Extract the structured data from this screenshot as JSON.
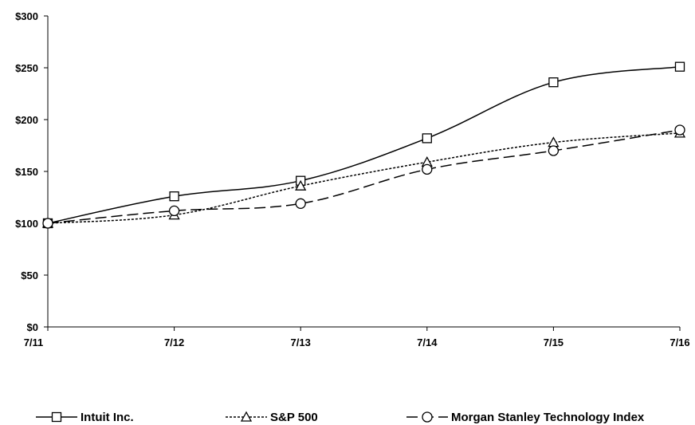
{
  "chart_data": {
    "type": "line",
    "categories": [
      "7/11",
      "7/12",
      "7/13",
      "7/14",
      "7/15",
      "7/16"
    ],
    "series": [
      {
        "name": "Intuit Inc.",
        "values": [
          100,
          126,
          141,
          182,
          236,
          251
        ],
        "marker": "square",
        "dash": "solid"
      },
      {
        "name": "S&P 500",
        "values": [
          100,
          108,
          136,
          159,
          178,
          187
        ],
        "marker": "triangle",
        "dash": "dotted"
      },
      {
        "name": "Morgan Stanley Technology Index",
        "values": [
          100,
          112,
          119,
          152,
          170,
          190
        ],
        "marker": "circle",
        "dash": "dashed"
      }
    ],
    "y_ticks": [
      0,
      50,
      100,
      150,
      200,
      250,
      300
    ],
    "y_tick_labels": [
      "$0",
      "$50",
      "$100",
      "$150",
      "$200",
      "$250",
      "$300"
    ],
    "ylim": [
      0,
      300
    ],
    "grid": false,
    "legend_position": "bottom",
    "line_color": "#000000"
  }
}
